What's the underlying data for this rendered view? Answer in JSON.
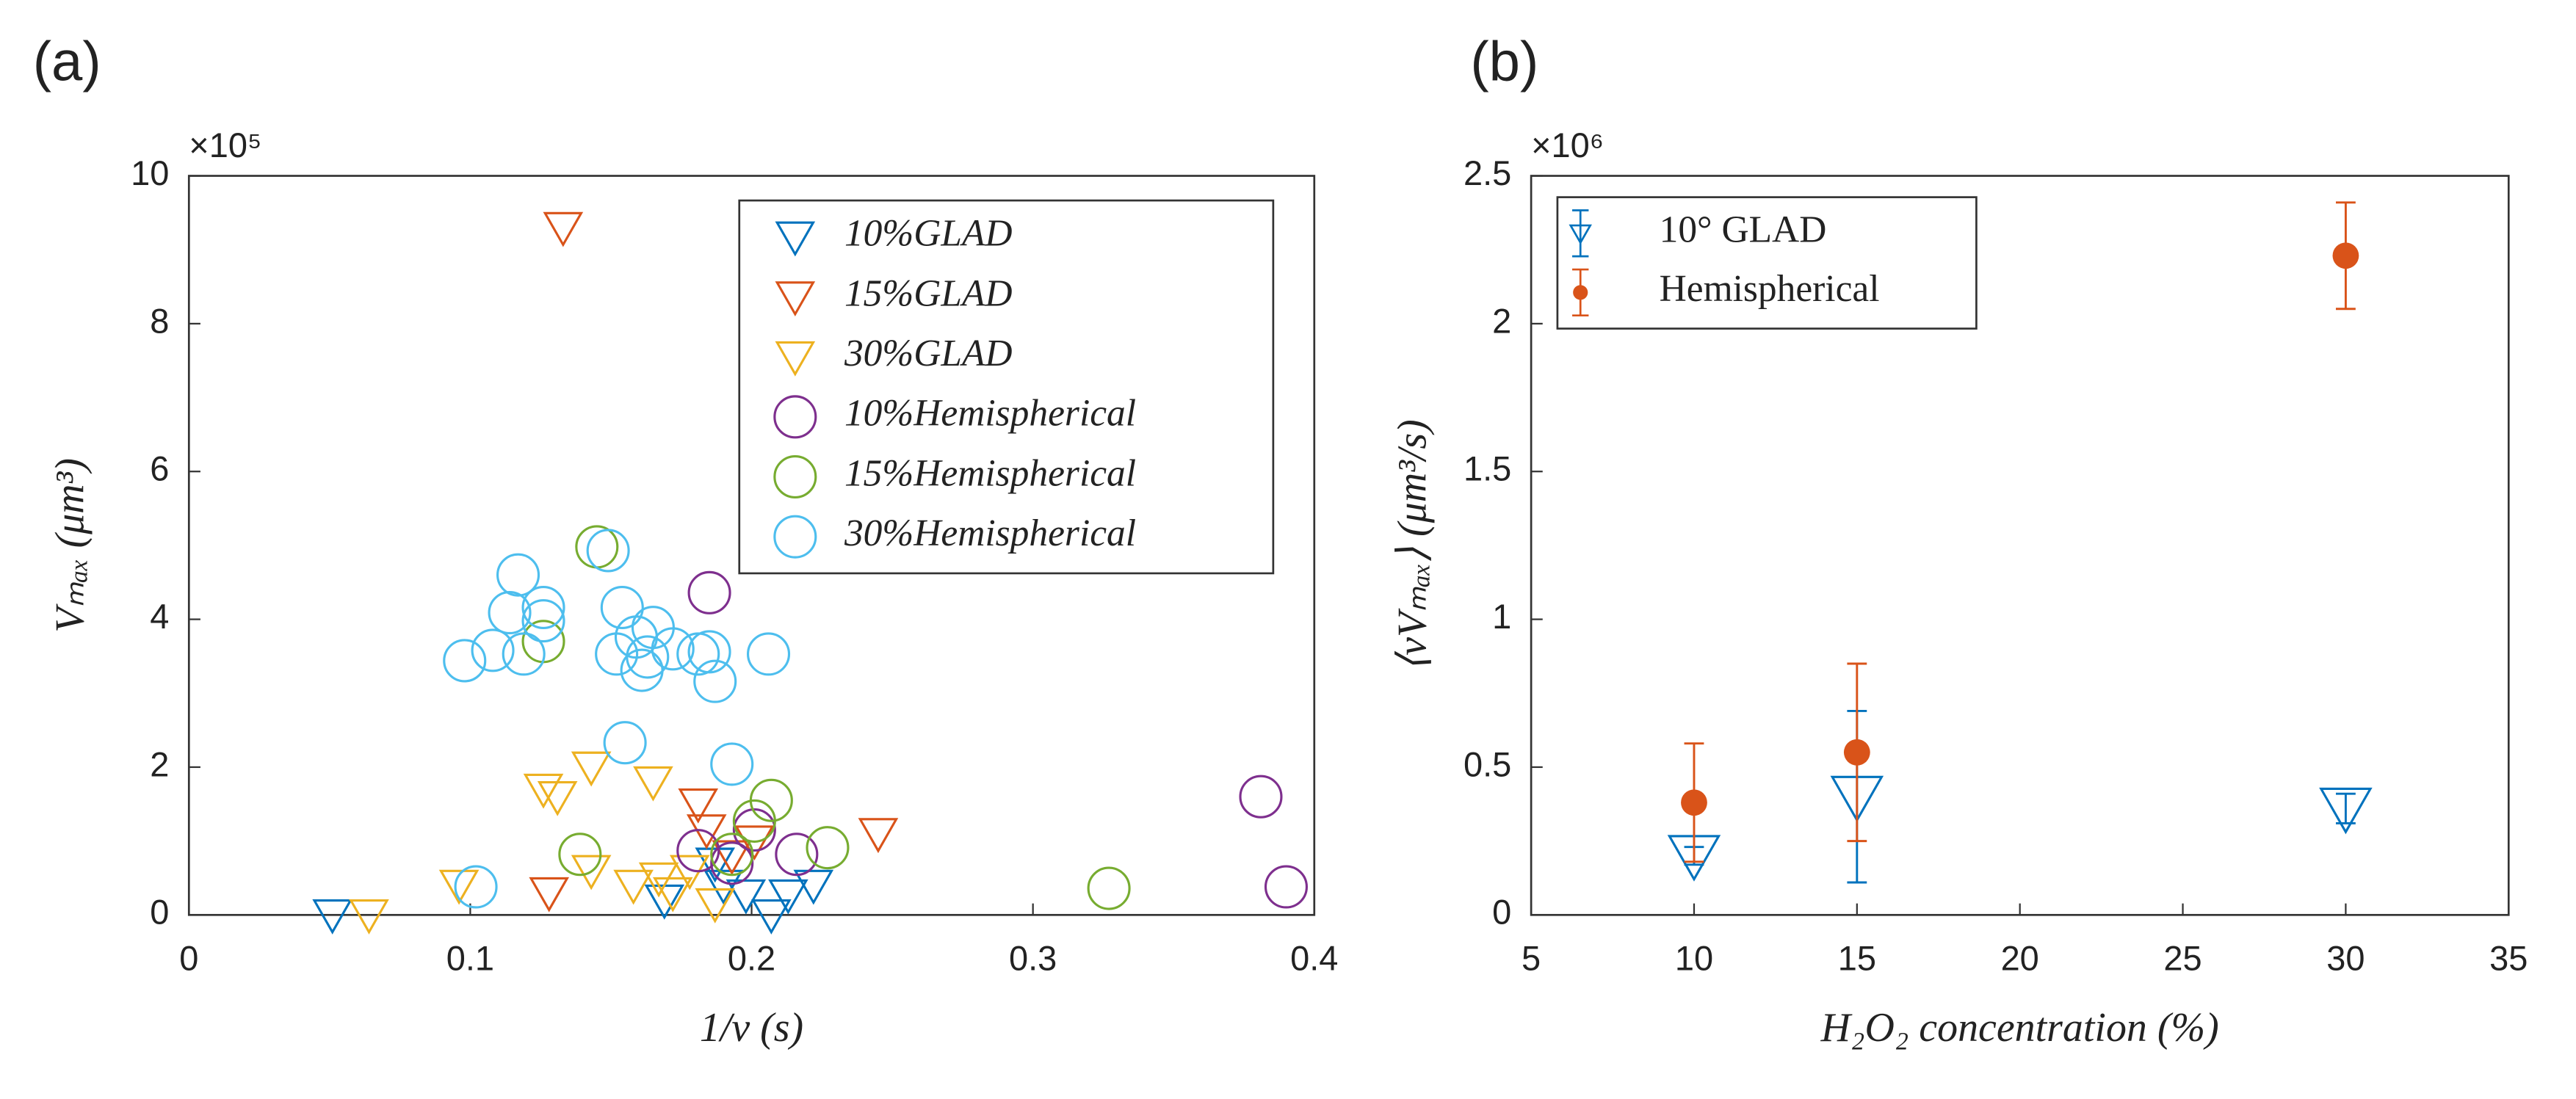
{
  "chart_data": [
    {
      "type": "scatter",
      "panel_label": "(a)",
      "exponent_label": "×10⁵",
      "xlabel": "1/ν (s)",
      "ylabel": "Vₘₐₓ (μm³)",
      "xlim": [
        0,
        0.4
      ],
      "xticks": [
        0,
        0.1,
        0.2,
        0.3,
        0.4
      ],
      "ylim": [
        0,
        10
      ],
      "yticks": [
        0,
        2,
        4,
        6,
        8,
        10
      ],
      "legend": "upper right",
      "series": [
        {
          "name": "10%GLAD",
          "color": "#0072BD",
          "marker": "triangle",
          "x": [
            0.051,
            0.169,
            0.19,
            0.207,
            0.198,
            0.213,
            0.222,
            0.187
          ],
          "values": [
            0,
            0.2,
            0.4,
            0,
            0.27,
            0.27,
            0.4,
            0.7
          ]
        },
        {
          "name": "15%GLAD",
          "color": "#D95319",
          "marker": "triangle",
          "x": [
            0.133,
            0.128,
            0.245,
            0.181,
            0.184,
            0.193,
            0.201
          ],
          "values": [
            9.3,
            0.3,
            1.1,
            1.5,
            1.15,
            0.8,
            1.0
          ]
        },
        {
          "name": "30%GLAD",
          "color": "#EDB120",
          "marker": "triangle",
          "x": [
            0.064,
            0.096,
            0.126,
            0.131,
            0.143,
            0.165,
            0.143,
            0.158,
            0.167,
            0.178,
            0.187,
            0.172
          ],
          "values": [
            0,
            0.4,
            1.7,
            1.6,
            2.0,
            1.8,
            0.6,
            0.4,
            0.5,
            0.6,
            0.15,
            0.3
          ]
        },
        {
          "name": "10%Hemispherical",
          "color": "#7E2F8E",
          "marker": "circle",
          "x": [
            0.185,
            0.381,
            0.39,
            0.181,
            0.193,
            0.201,
            0.216
          ],
          "values": [
            4.36,
            1.6,
            0.38,
            0.87,
            0.7,
            1.15,
            0.82
          ]
        },
        {
          "name": "15%Hemispherical",
          "color": "#77AC30",
          "marker": "circle",
          "x": [
            0.145,
            0.126,
            0.139,
            0.327,
            0.227,
            0.207,
            0.201,
            0.193
          ],
          "values": [
            4.98,
            3.7,
            0.82,
            0.36,
            0.91,
            1.55,
            1.27,
            0.82
          ]
        },
        {
          "name": "30%Hemispherical",
          "color": "#4DBEEE",
          "marker": "circle",
          "x": [
            0.098,
            0.108,
            0.117,
            0.114,
            0.126,
            0.119,
            0.126,
            0.149,
            0.154,
            0.152,
            0.161,
            0.165,
            0.172,
            0.163,
            0.181,
            0.185,
            0.187,
            0.206,
            0.155,
            0.193,
            0.102,
            0.159
          ],
          "values": [
            3.44,
            3.58,
            4.6,
            4.09,
            4.16,
            3.53,
            3.98,
            4.93,
            4.16,
            3.53,
            3.31,
            3.89,
            3.6,
            3.49,
            3.53,
            3.56,
            3.16,
            3.53,
            2.33,
            2.04,
            0.38,
            3.76
          ]
        }
      ]
    },
    {
      "type": "errorbar",
      "panel_label": "(b)",
      "exponent_label": "×10⁶",
      "xlabel": "H₂O₂ concentration (%)",
      "ylabel": "⟨νVₘₐₓ⟩ (μm³/s)",
      "xlim": [
        5,
        35
      ],
      "xticks": [
        5,
        10,
        15,
        20,
        25,
        30,
        35
      ],
      "ylim": [
        0,
        2.5
      ],
      "yticks": [
        0,
        0.5,
        1,
        1.5,
        2,
        2.5
      ],
      "legend": "upper left",
      "series": [
        {
          "name": "10° GLAD",
          "color": "#0072BD",
          "marker": "triangle",
          "x": [
            10,
            15,
            30
          ],
          "values": [
            0.2,
            0.4,
            0.36
          ],
          "errors": [
            0.03,
            0.29,
            0.05
          ]
        },
        {
          "name": "Hemispherical",
          "color": "#D95319",
          "marker": "dot",
          "x": [
            10,
            15,
            30
          ],
          "values": [
            0.38,
            0.55,
            2.23
          ],
          "errors": [
            0.2,
            0.3,
            0.18
          ]
        }
      ]
    }
  ]
}
